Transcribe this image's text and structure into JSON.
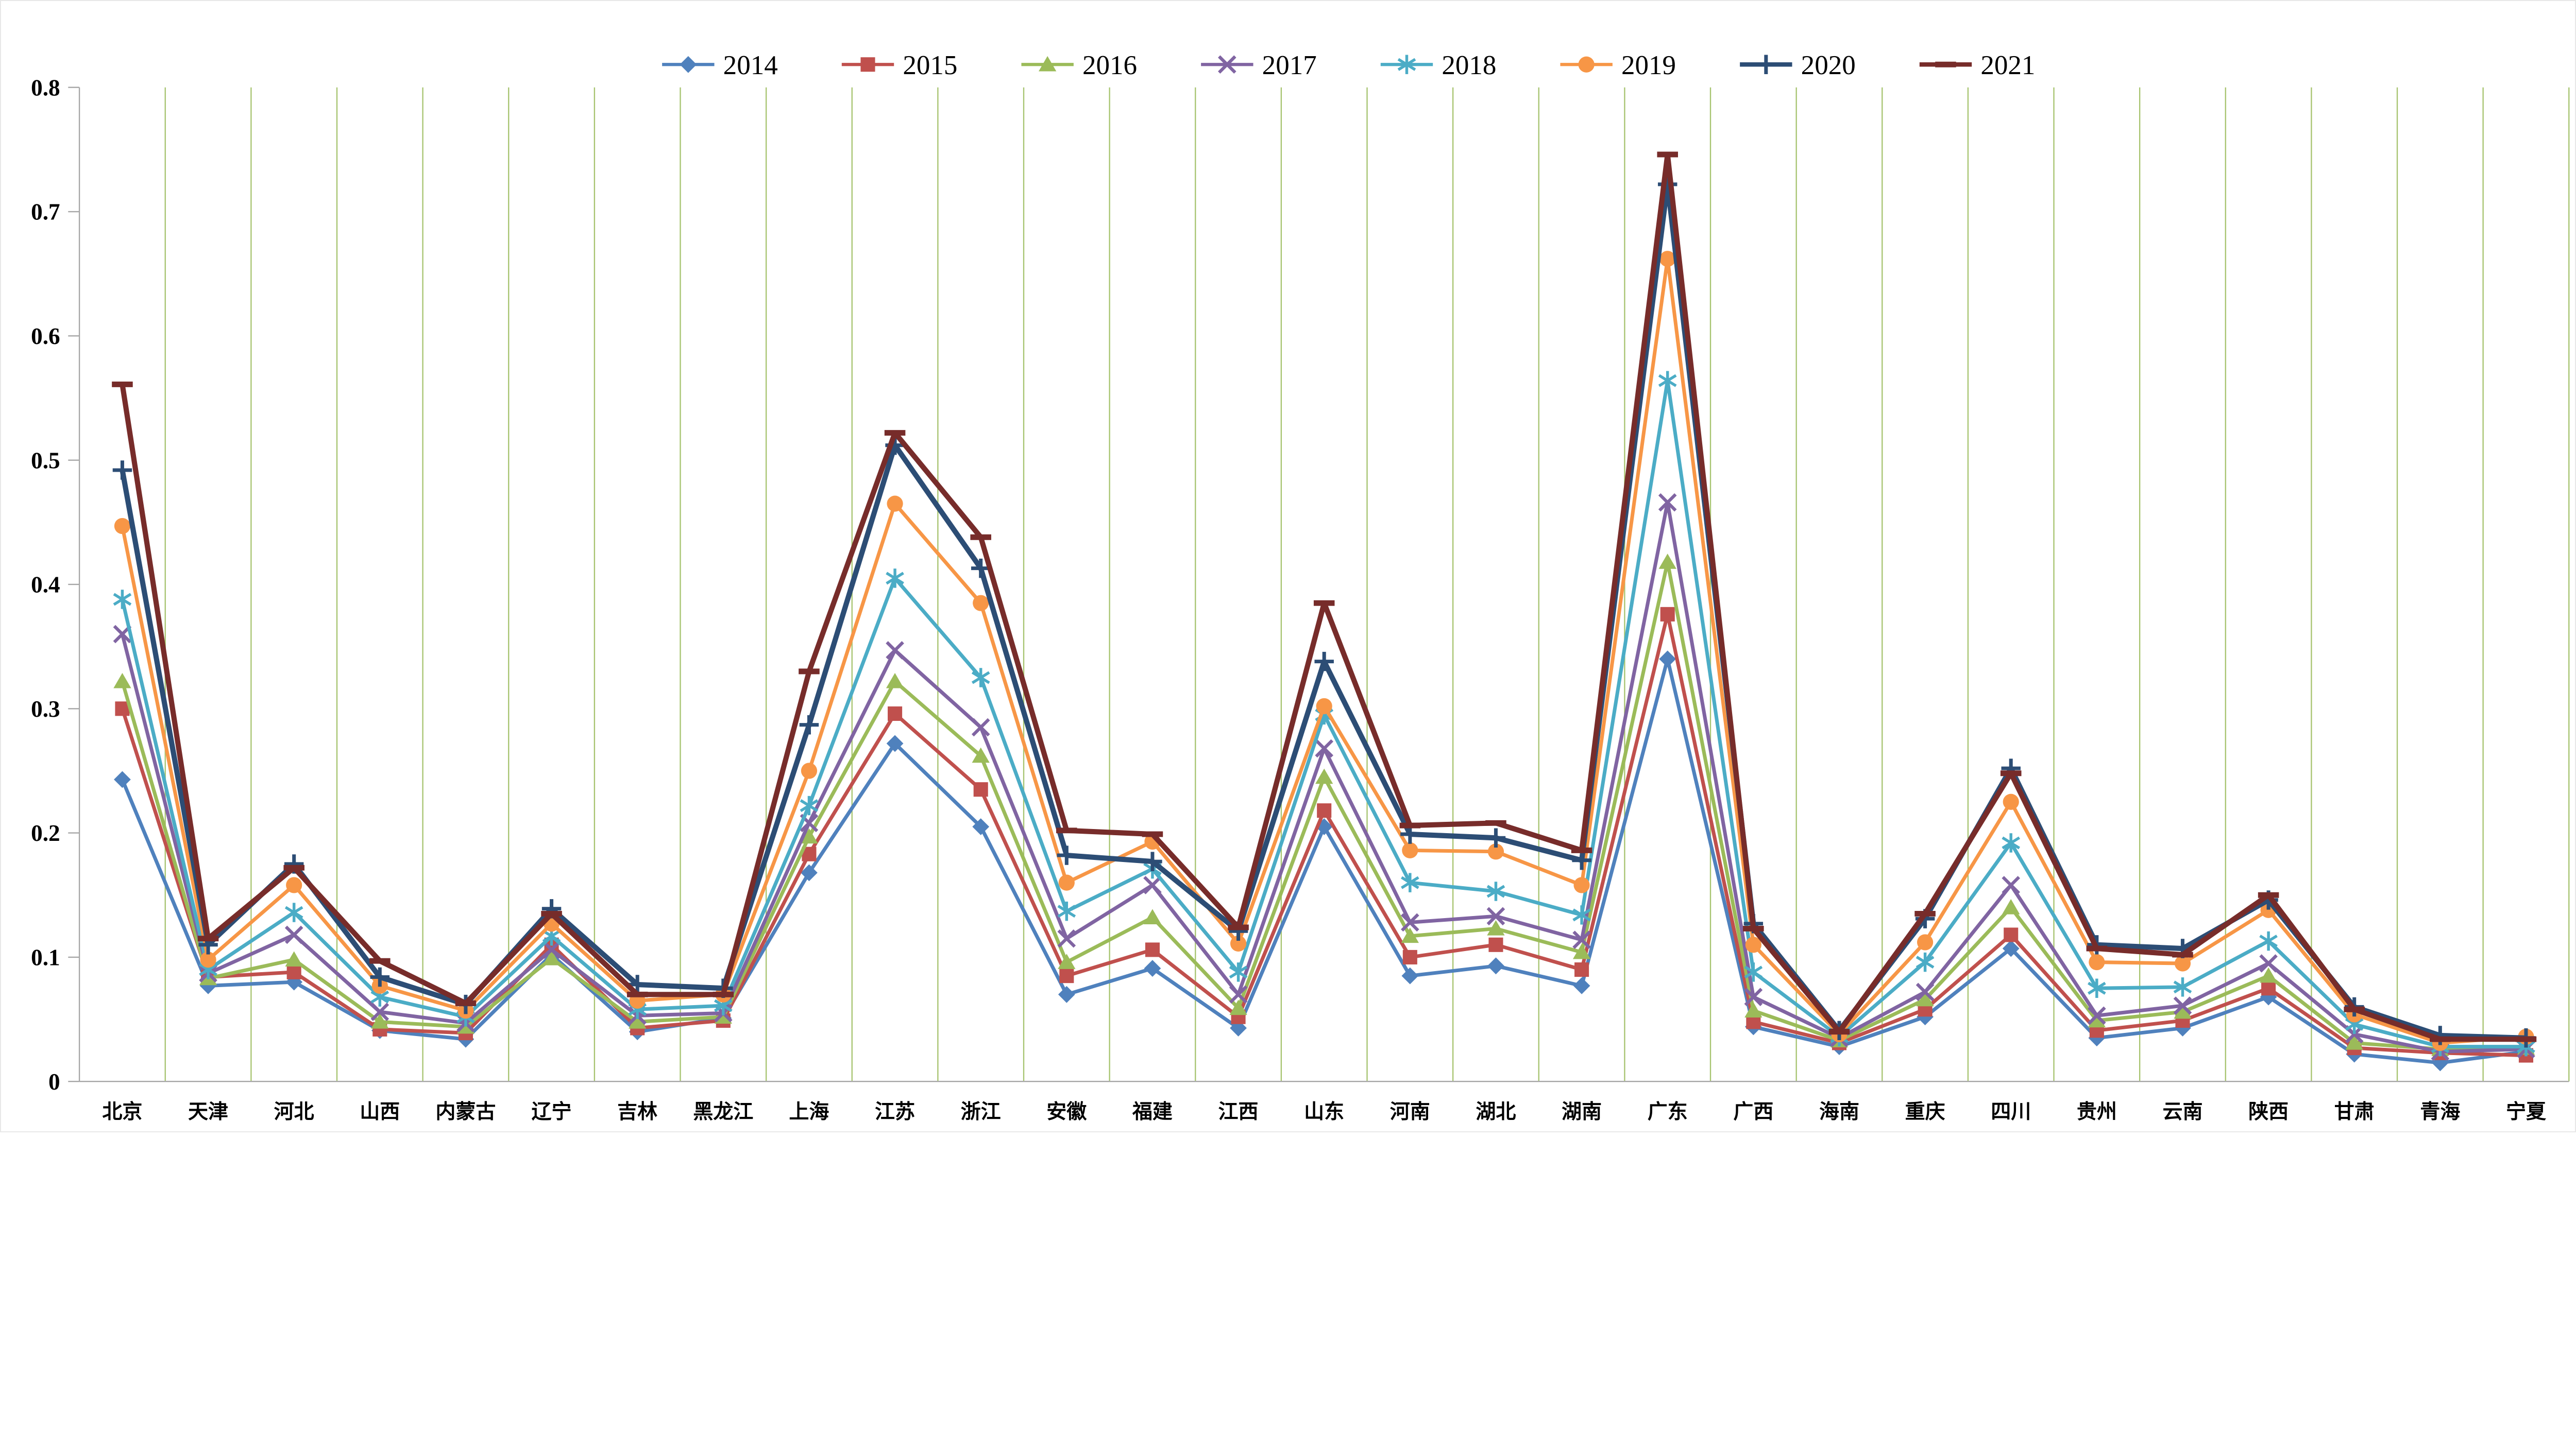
{
  "chart_data": {
    "type": "line",
    "title": "",
    "xlabel": "",
    "ylabel": "",
    "ylim": [
      0,
      0.8
    ],
    "yticks": [
      "0",
      "0.1",
      "0.2",
      "0.3",
      "0.4",
      "0.5",
      "0.6",
      "0.7",
      "0.8"
    ],
    "grid": "vertical-only",
    "legend_position": "top",
    "categories": [
      "北京",
      "天津",
      "河北",
      "山西",
      "内蒙古",
      "辽宁",
      "吉林",
      "黑龙江",
      "上海",
      "江苏",
      "浙江",
      "安徽",
      "福建",
      "江西",
      "山东",
      "河南",
      "湖北",
      "湖南",
      "广东",
      "广西",
      "海南",
      "重庆",
      "四川",
      "贵州",
      "云南",
      "陕西",
      "甘肃",
      "青海",
      "宁夏"
    ],
    "series": [
      {
        "name": "2014",
        "color": "#4F81BD",
        "marker": "diamond",
        "values": [
          0.243,
          0.077,
          0.08,
          0.041,
          0.034,
          0.102,
          0.04,
          0.051,
          0.168,
          0.272,
          0.205,
          0.07,
          0.091,
          0.043,
          0.205,
          0.085,
          0.093,
          0.077,
          0.34,
          0.044,
          0.028,
          0.052,
          0.107,
          0.035,
          0.043,
          0.068,
          0.022,
          0.015,
          0.024
        ]
      },
      {
        "name": "2015",
        "color": "#C0504D",
        "marker": "square",
        "values": [
          0.3,
          0.084,
          0.088,
          0.042,
          0.039,
          0.11,
          0.043,
          0.049,
          0.183,
          0.296,
          0.235,
          0.085,
          0.106,
          0.052,
          0.218,
          0.1,
          0.11,
          0.09,
          0.376,
          0.048,
          0.031,
          0.058,
          0.118,
          0.041,
          0.049,
          0.075,
          0.027,
          0.023,
          0.021
        ]
      },
      {
        "name": "2016",
        "color": "#9BBB59",
        "marker": "triangle",
        "values": [
          0.322,
          0.083,
          0.098,
          0.048,
          0.044,
          0.099,
          0.048,
          0.052,
          0.197,
          0.322,
          0.262,
          0.096,
          0.132,
          0.059,
          0.245,
          0.117,
          0.123,
          0.104,
          0.418,
          0.057,
          0.033,
          0.066,
          0.14,
          0.049,
          0.056,
          0.085,
          0.031,
          0.026,
          0.027
        ]
      },
      {
        "name": "2017",
        "color": "#8064A2",
        "marker": "x",
        "values": [
          0.36,
          0.087,
          0.118,
          0.056,
          0.047,
          0.106,
          0.053,
          0.055,
          0.208,
          0.347,
          0.285,
          0.115,
          0.158,
          0.07,
          0.268,
          0.128,
          0.133,
          0.114,
          0.466,
          0.068,
          0.035,
          0.072,
          0.158,
          0.053,
          0.061,
          0.095,
          0.038,
          0.024,
          0.026
        ]
      },
      {
        "name": "2018",
        "color": "#4BACC6",
        "marker": "asterisk",
        "values": [
          0.388,
          0.09,
          0.136,
          0.068,
          0.052,
          0.117,
          0.058,
          0.061,
          0.222,
          0.405,
          0.325,
          0.137,
          0.171,
          0.088,
          0.295,
          0.16,
          0.153,
          0.134,
          0.564,
          0.088,
          0.036,
          0.096,
          0.192,
          0.075,
          0.076,
          0.113,
          0.046,
          0.028,
          0.028
        ]
      },
      {
        "name": "2019",
        "color": "#F79646",
        "marker": "circle",
        "values": [
          0.447,
          0.098,
          0.158,
          0.077,
          0.057,
          0.127,
          0.065,
          0.07,
          0.25,
          0.465,
          0.385,
          0.16,
          0.193,
          0.111,
          0.302,
          0.186,
          0.185,
          0.158,
          0.662,
          0.11,
          0.038,
          0.112,
          0.225,
          0.096,
          0.095,
          0.138,
          0.054,
          0.031,
          0.036
        ]
      },
      {
        "name": "2020",
        "color": "#2C4D75",
        "marker": "plus",
        "values": [
          0.492,
          0.11,
          0.175,
          0.084,
          0.062,
          0.139,
          0.078,
          0.075,
          0.287,
          0.512,
          0.413,
          0.182,
          0.177,
          0.121,
          0.338,
          0.199,
          0.196,
          0.178,
          0.722,
          0.127,
          0.041,
          0.131,
          0.252,
          0.11,
          0.107,
          0.146,
          0.06,
          0.037,
          0.035
        ]
      },
      {
        "name": "2021",
        "color": "#772C2A",
        "marker": "dash",
        "values": [
          0.561,
          0.115,
          0.172,
          0.097,
          0.063,
          0.135,
          0.07,
          0.07,
          0.33,
          0.522,
          0.438,
          0.202,
          0.199,
          0.124,
          0.385,
          0.206,
          0.208,
          0.186,
          0.746,
          0.123,
          0.04,
          0.135,
          0.248,
          0.107,
          0.102,
          0.15,
          0.058,
          0.034,
          0.034
        ]
      }
    ]
  },
  "style": {
    "grid_color": "#a7c470",
    "axis_color": "#a6a6a6",
    "text_color": "#000000",
    "background": "#ffffff"
  }
}
